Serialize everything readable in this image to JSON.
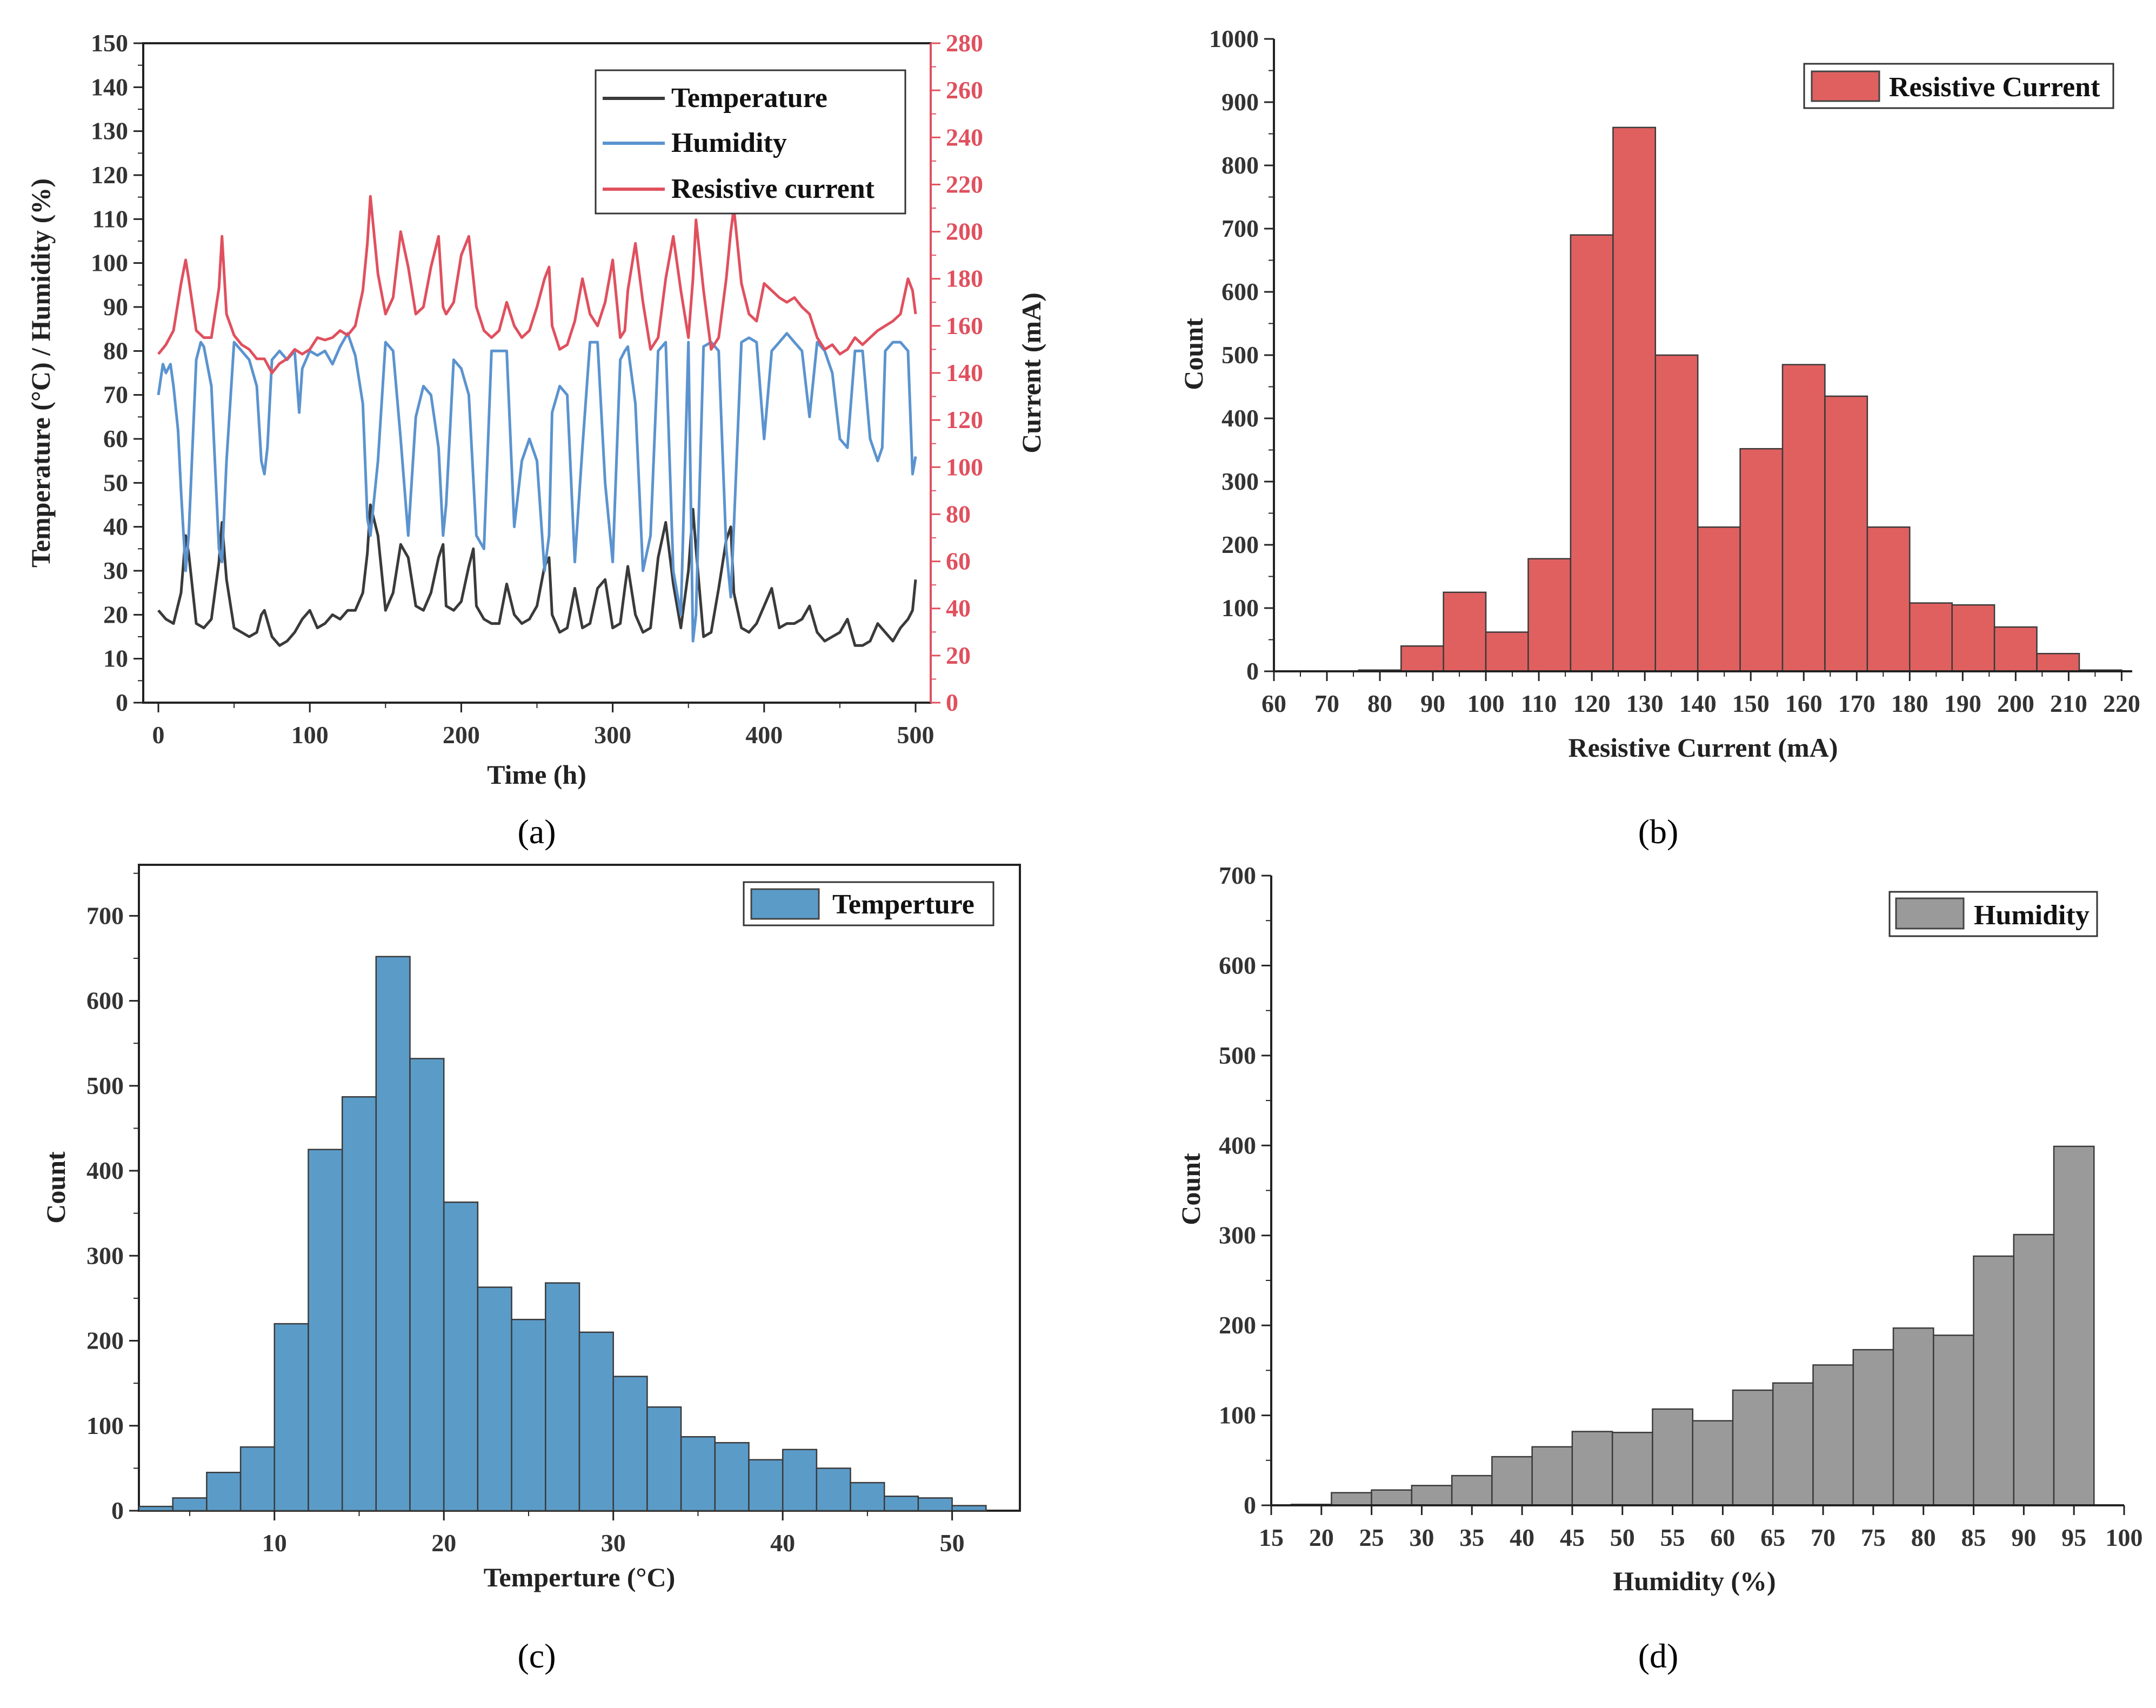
{
  "chart_data": [
    {
      "panel_label": "a",
      "type": "line",
      "xlabel": "Time (h)",
      "ylabel": "Temperature (°C) / Humidity (%)",
      "y2label": "Current (mA)",
      "xlim": [
        -10,
        510
      ],
      "ylim": [
        0,
        150
      ],
      "y2lim": [
        0,
        280
      ],
      "xticks": [
        0,
        100,
        200,
        300,
        400,
        500
      ],
      "yticks": [
        0,
        10,
        20,
        30,
        40,
        50,
        60,
        70,
        80,
        90,
        100,
        110,
        120,
        130,
        140,
        150
      ],
      "y2ticks": [
        0,
        20,
        40,
        60,
        80,
        100,
        120,
        140,
        160,
        180,
        200,
        220,
        240,
        260,
        280
      ],
      "legend": [
        "Temperature",
        "Humidity",
        "Resistive current"
      ],
      "series": [
        {
          "name": "Temperature",
          "axis": "left",
          "color": "#3a3a3a",
          "x": [
            0,
            5,
            10,
            15,
            18,
            20,
            25,
            30,
            35,
            40,
            42,
            45,
            50,
            55,
            60,
            65,
            68,
            70,
            75,
            80,
            85,
            90,
            95,
            100,
            105,
            110,
            115,
            120,
            125,
            130,
            135,
            138,
            140,
            145,
            150,
            155,
            160,
            165,
            170,
            175,
            180,
            185,
            188,
            190,
            195,
            200,
            205,
            208,
            210,
            215,
            220,
            225,
            230,
            235,
            240,
            245,
            250,
            255,
            258,
            260,
            265,
            270,
            275,
            280,
            285,
            290,
            295,
            300,
            305,
            308,
            310,
            315,
            320,
            325,
            330,
            335,
            340,
            345,
            350,
            353,
            355,
            360,
            365,
            370,
            375,
            378,
            380,
            385,
            390,
            395,
            400,
            405,
            410,
            415,
            420,
            425,
            430,
            435,
            440,
            445,
            450,
            455,
            460,
            465,
            470,
            475,
            480,
            485,
            490,
            495,
            498,
            500
          ],
          "y": [
            21,
            19,
            18,
            25,
            38,
            34,
            18,
            17,
            19,
            32,
            41,
            28,
            17,
            16,
            15,
            16,
            20,
            21,
            15,
            13,
            14,
            16,
            19,
            21,
            17,
            18,
            20,
            19,
            21,
            21,
            25,
            34,
            45,
            38,
            21,
            25,
            36,
            33,
            22,
            21,
            25,
            33,
            36,
            22,
            21,
            23,
            31,
            35,
            22,
            19,
            18,
            18,
            27,
            20,
            18,
            19,
            22,
            31,
            33,
            20,
            16,
            17,
            26,
            17,
            18,
            26,
            28,
            17,
            18,
            26,
            31,
            20,
            16,
            17,
            33,
            41,
            27,
            17,
            30,
            44,
            35,
            15,
            16,
            26,
            37,
            40,
            25,
            17,
            16,
            18,
            22,
            26,
            17,
            18,
            18,
            19,
            22,
            16,
            14,
            15,
            16,
            19,
            13,
            13,
            14,
            18,
            16,
            14,
            17,
            19,
            21,
            28
          ]
        },
        {
          "name": "Humidity",
          "axis": "left",
          "color": "#5b93cf",
          "x": [
            0,
            3,
            5,
            8,
            10,
            13,
            15,
            18,
            20,
            25,
            28,
            30,
            35,
            40,
            42,
            45,
            50,
            55,
            60,
            65,
            68,
            70,
            72,
            75,
            80,
            85,
            90,
            93,
            95,
            100,
            105,
            110,
            115,
            120,
            125,
            130,
            135,
            138,
            140,
            145,
            150,
            155,
            160,
            165,
            170,
            175,
            180,
            185,
            188,
            190,
            195,
            200,
            205,
            210,
            215,
            220,
            225,
            230,
            235,
            240,
            245,
            250,
            255,
            258,
            260,
            265,
            270,
            275,
            280,
            285,
            290,
            295,
            300,
            305,
            308,
            310,
            315,
            320,
            325,
            330,
            335,
            340,
            345,
            350,
            353,
            355,
            360,
            365,
            370,
            375,
            378,
            380,
            385,
            390,
            395,
            400,
            405,
            410,
            415,
            420,
            425,
            430,
            435,
            440,
            445,
            450,
            455,
            460,
            465,
            470,
            475,
            478,
            480,
            485,
            490,
            495,
            498,
            500
          ],
          "y": [
            70,
            77,
            75,
            77,
            72,
            62,
            48,
            30,
            38,
            78,
            82,
            81,
            72,
            35,
            32,
            55,
            82,
            80,
            78,
            72,
            55,
            52,
            58,
            78,
            80,
            78,
            80,
            66,
            76,
            80,
            79,
            80,
            77,
            81,
            84,
            79,
            68,
            42,
            38,
            55,
            82,
            80,
            60,
            38,
            65,
            72,
            70,
            58,
            38,
            45,
            78,
            76,
            70,
            38,
            35,
            80,
            80,
            80,
            40,
            55,
            60,
            55,
            30,
            38,
            66,
            72,
            70,
            32,
            58,
            82,
            82,
            50,
            32,
            78,
            80,
            81,
            68,
            30,
            38,
            80,
            82,
            30,
            20,
            82,
            14,
            20,
            81,
            82,
            80,
            35,
            24,
            40,
            82,
            83,
            82,
            60,
            80,
            82,
            84,
            82,
            80,
            65,
            82,
            80,
            75,
            60,
            58,
            80,
            80,
            60,
            55,
            58,
            80,
            82,
            82,
            80,
            52,
            56
          ]
        },
        {
          "name": "Resistive current",
          "axis": "right",
          "color": "#e0505e",
          "x": [
            0,
            5,
            10,
            15,
            18,
            20,
            25,
            30,
            35,
            40,
            42,
            45,
            50,
            55,
            60,
            65,
            70,
            75,
            80,
            85,
            90,
            95,
            100,
            105,
            110,
            115,
            120,
            125,
            130,
            135,
            138,
            140,
            145,
            150,
            155,
            160,
            165,
            170,
            175,
            180,
            185,
            188,
            190,
            195,
            200,
            205,
            208,
            210,
            215,
            220,
            225,
            230,
            235,
            240,
            245,
            250,
            255,
            258,
            260,
            265,
            270,
            275,
            280,
            285,
            290,
            295,
            300,
            305,
            308,
            310,
            315,
            320,
            325,
            330,
            335,
            340,
            345,
            350,
            353,
            355,
            360,
            365,
            370,
            375,
            378,
            380,
            385,
            390,
            395,
            400,
            405,
            410,
            415,
            420,
            425,
            430,
            435,
            440,
            445,
            450,
            455,
            460,
            465,
            470,
            475,
            480,
            485,
            490,
            495,
            498,
            500
          ],
          "y": [
            148,
            152,
            158,
            178,
            188,
            180,
            158,
            155,
            155,
            176,
            198,
            165,
            156,
            152,
            150,
            146,
            146,
            140,
            144,
            146,
            150,
            148,
            150,
            155,
            154,
            155,
            158,
            156,
            160,
            175,
            195,
            215,
            182,
            165,
            172,
            200,
            185,
            165,
            168,
            185,
            198,
            168,
            165,
            170,
            190,
            198,
            180,
            168,
            158,
            155,
            158,
            170,
            160,
            155,
            158,
            168,
            180,
            185,
            160,
            150,
            152,
            162,
            180,
            165,
            160,
            170,
            188,
            155,
            158,
            175,
            195,
            170,
            150,
            155,
            180,
            198,
            175,
            155,
            180,
            205,
            175,
            150,
            155,
            180,
            200,
            210,
            178,
            165,
            162,
            178,
            175,
            172,
            170,
            172,
            168,
            165,
            155,
            150,
            152,
            148,
            150,
            155,
            152,
            155,
            158,
            160,
            162,
            165,
            180,
            175,
            165
          ]
        }
      ]
    },
    {
      "panel_label": "b",
      "type": "bar",
      "xlabel": "Resistive Current (mA)",
      "ylabel": "Count",
      "xlim": [
        60,
        222
      ],
      "ylim": [
        0,
        1000
      ],
      "xticks": [
        60,
        70,
        80,
        90,
        100,
        110,
        120,
        130,
        140,
        150,
        160,
        170,
        180,
        190,
        200,
        210,
        220
      ],
      "yticks": [
        0,
        100,
        200,
        300,
        400,
        500,
        600,
        700,
        800,
        900,
        1000
      ],
      "legend": [
        "Resistive Current"
      ],
      "color": "#e06060",
      "bin_width": 8,
      "bin_starts": [
        76,
        84,
        92,
        100,
        108,
        116,
        124,
        132,
        140,
        148,
        156,
        164,
        172,
        180,
        188,
        196,
        204,
        212
      ],
      "values": [
        2,
        40,
        125,
        62,
        178,
        690,
        860,
        500,
        228,
        352,
        485,
        435,
        228,
        108,
        105,
        70,
        28,
        2
      ]
    },
    {
      "panel_label": "c",
      "type": "bar",
      "xlabel": "Temperture (°C)",
      "ylabel": "Count",
      "xlim": [
        2,
        54
      ],
      "ylim": [
        0,
        760
      ],
      "xticks": [
        10,
        20,
        30,
        40,
        50
      ],
      "yticks": [
        0,
        100,
        200,
        300,
        400,
        500,
        600,
        700
      ],
      "legend": [
        "Temperture"
      ],
      "color": "#5b9bc8",
      "bin_width": 2,
      "bin_starts": [
        2,
        4,
        6,
        8,
        10,
        12,
        14,
        16,
        18,
        20,
        22,
        24,
        26,
        28,
        30,
        32,
        34,
        36,
        38,
        40,
        42,
        44,
        46,
        48,
        50
      ],
      "values": [
        5,
        15,
        45,
        75,
        220,
        425,
        487,
        652,
        532,
        363,
        263,
        225,
        268,
        210,
        158,
        122,
        87,
        80,
        60,
        72,
        50,
        33,
        17,
        15,
        6
      ]
    },
    {
      "panel_label": "d",
      "type": "bar",
      "xlabel": "Humidity (%)",
      "ylabel": "Count",
      "xlim": [
        15,
        100
      ],
      "ylim": [
        0,
        700
      ],
      "xticks": [
        15,
        20,
        25,
        30,
        35,
        40,
        45,
        50,
        55,
        60,
        65,
        70,
        75,
        80,
        85,
        90,
        95,
        100
      ],
      "yticks": [
        0,
        100,
        200,
        300,
        400,
        500,
        600,
        700
      ],
      "legend": [
        "Humidity"
      ],
      "color": "#9a9a9a",
      "bin_width": 4,
      "bin_starts": [
        17,
        21,
        25,
        29,
        33,
        37,
        41,
        45,
        49,
        53,
        57,
        61,
        65,
        69,
        73,
        77,
        81,
        85,
        89,
        93
      ],
      "values": [
        1,
        14,
        17,
        22,
        33,
        54,
        65,
        82,
        81,
        107,
        94,
        128,
        136,
        156,
        173,
        197,
        189,
        277,
        301,
        399
      ],
      "bin_starts_tail": [],
      "values_tail": []
    }
  ],
  "captions": {
    "a": "(a)",
    "b": "(b)",
    "c": "(c)",
    "d": "(d)"
  }
}
